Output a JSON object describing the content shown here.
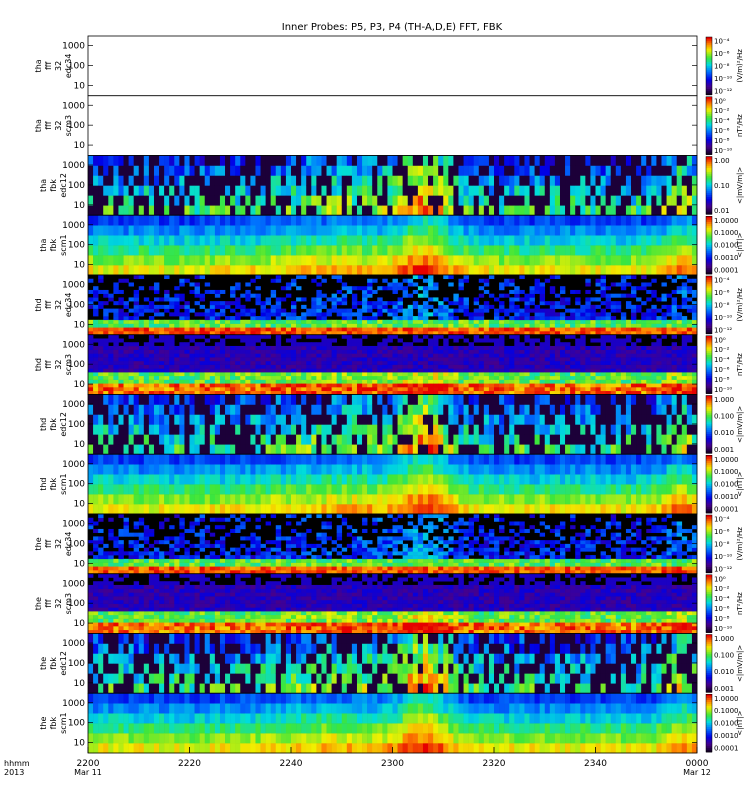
{
  "chart_data": {
    "type": "heatmap",
    "title": "Inner Probes: P5, P3, P4 (TH-A,D,E) FFT, FBK",
    "x_axis": {
      "start_hhmm": 2200,
      "end_hhmm": 2400,
      "tick_labels": [
        "2200",
        "2220",
        "2240",
        "2300",
        "2320",
        "2340",
        "0000"
      ],
      "date_labels": {
        "2200": "Mar 11",
        "0000": "Mar 12"
      },
      "row_label_1": "hhmm",
      "row_label_2": "2013"
    },
    "panels": [
      {
        "probe": "tha",
        "label": [
          "tha",
          "fff",
          "32",
          "edc34"
        ],
        "kind": "fff_e",
        "empty": true,
        "y_ticks": [
          "1000",
          "100",
          "10"
        ],
        "colorbar": {
          "ticks": [
            "10⁻⁴",
            "10⁻⁶",
            "10⁻⁸",
            "10⁻¹⁰",
            "10⁻¹²"
          ],
          "unit": "(V/m)²/Hz"
        }
      },
      {
        "probe": "tha",
        "label": [
          "tha",
          "fff",
          "32",
          "scm3"
        ],
        "kind": "fff_b",
        "empty": true,
        "y_ticks": [
          "1000",
          "100",
          "10"
        ],
        "colorbar": {
          "ticks": [
            "10⁰",
            "10⁻²",
            "10⁻⁴",
            "10⁻⁶",
            "10⁻⁸",
            "10⁻¹⁰"
          ],
          "unit": "nT²/Hz"
        }
      },
      {
        "probe": "tha",
        "label": [
          "tha",
          "fbk",
          "edc12"
        ],
        "kind": "fbk_e",
        "empty": false,
        "y_ticks": [
          "1000",
          "100",
          "10"
        ],
        "colorbar": {
          "ticks": [
            "1.00",
            "0.10",
            "0.01"
          ],
          "unit": "<|mV/m|>"
        }
      },
      {
        "probe": "tha",
        "label": [
          "tha",
          "fbk",
          "scm1"
        ],
        "kind": "fbk_b",
        "empty": false,
        "y_ticks": [
          "1000",
          "100",
          "10"
        ],
        "colorbar": {
          "ticks": [
            "1.0000",
            "0.1000",
            "0.0100",
            "0.0010",
            "0.0001"
          ],
          "unit": "<|nT|>"
        }
      },
      {
        "probe": "thd",
        "label": [
          "thd",
          "fff",
          "32",
          "edc34"
        ],
        "kind": "fff_e",
        "empty": false,
        "y_ticks": [
          "1000",
          "100",
          "10"
        ],
        "colorbar": {
          "ticks": [
            "10⁻⁴",
            "10⁻⁶",
            "10⁻⁸",
            "10⁻¹⁰",
            "10⁻¹²"
          ],
          "unit": "(V/m)²/Hz"
        }
      },
      {
        "probe": "thd",
        "label": [
          "thd",
          "fff",
          "32",
          "scm3"
        ],
        "kind": "fff_b",
        "empty": false,
        "y_ticks": [
          "1000",
          "100",
          "10"
        ],
        "colorbar": {
          "ticks": [
            "10⁰",
            "10⁻²",
            "10⁻⁴",
            "10⁻⁶",
            "10⁻⁸",
            "10⁻¹⁰"
          ],
          "unit": "nT²/Hz"
        }
      },
      {
        "probe": "thd",
        "label": [
          "thd",
          "fbk",
          "edc12"
        ],
        "kind": "fbk_e",
        "empty": false,
        "y_ticks": [
          "1000",
          "100",
          "10"
        ],
        "colorbar": {
          "ticks": [
            "1.000",
            "0.100",
            "0.010",
            "0.001"
          ],
          "unit": "<|mV/m|>"
        }
      },
      {
        "probe": "thd",
        "label": [
          "thd",
          "fbk",
          "scm1"
        ],
        "kind": "fbk_b",
        "empty": false,
        "y_ticks": [
          "1000",
          "100",
          "10"
        ],
        "colorbar": {
          "ticks": [
            "1.0000",
            "0.1000",
            "0.0100",
            "0.0010",
            "0.0001"
          ],
          "unit": "<|nT|>"
        }
      },
      {
        "probe": "the",
        "label": [
          "the",
          "fff",
          "32",
          "edc34"
        ],
        "kind": "fff_e",
        "empty": false,
        "y_ticks": [
          "1000",
          "100",
          "10"
        ],
        "colorbar": {
          "ticks": [
            "10⁻⁴",
            "10⁻⁶",
            "10⁻⁸",
            "10⁻¹⁰",
            "10⁻¹²"
          ],
          "unit": "(V/m)²/Hz"
        }
      },
      {
        "probe": "the",
        "label": [
          "the",
          "fff",
          "32",
          "scm3"
        ],
        "kind": "fff_b",
        "empty": false,
        "y_ticks": [
          "1000",
          "100",
          "10"
        ],
        "colorbar": {
          "ticks": [
            "10⁰",
            "10⁻²",
            "10⁻⁴",
            "10⁻⁶",
            "10⁻⁸",
            "10⁻¹⁰"
          ],
          "unit": "nT²/Hz"
        }
      },
      {
        "probe": "the",
        "label": [
          "the",
          "fbk",
          "edc12"
        ],
        "kind": "fbk_e",
        "empty": false,
        "y_ticks": [
          "1000",
          "100",
          "10"
        ],
        "colorbar": {
          "ticks": [
            "1.000",
            "0.100",
            "0.010",
            "0.001"
          ],
          "unit": "<|mV/m|>"
        }
      },
      {
        "probe": "the",
        "label": [
          "the",
          "fbk",
          "scm1"
        ],
        "kind": "fbk_b",
        "empty": false,
        "y_ticks": [
          "1000",
          "100",
          "10"
        ],
        "colorbar": {
          "ticks": [
            "1.0000",
            "0.1000",
            "0.0100",
            "0.0010",
            "0.0001"
          ],
          "unit": "<|nT|>"
        }
      }
    ]
  }
}
